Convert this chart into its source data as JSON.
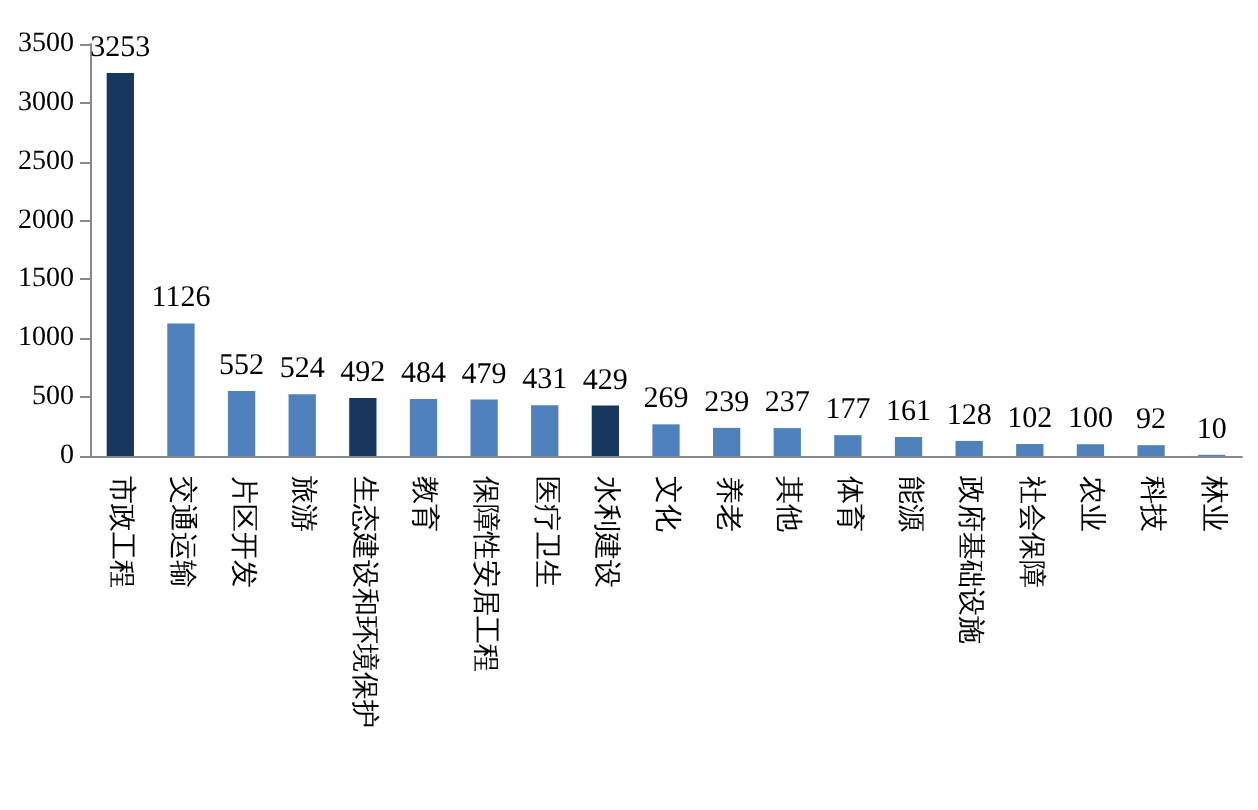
{
  "chart_data": {
    "type": "bar",
    "categories": [
      "市政工程",
      "交通运输",
      "片区开发",
      "旅游",
      "生态建设和环境保护",
      "教育",
      "保障性安居工程",
      "医疗卫生",
      "水利建设",
      "文化",
      "养老",
      "其他",
      "体育",
      "能源",
      "政府基础设施",
      "社会保障",
      "农业",
      "科技",
      "林业"
    ],
    "values": [
      3253,
      1126,
      552,
      524,
      492,
      484,
      479,
      431,
      429,
      269,
      239,
      237,
      177,
      161,
      128,
      102,
      100,
      92,
      10
    ],
    "colors": [
      "#17375e",
      "#4f81bd",
      "#4f81bd",
      "#4f81bd",
      "#17375e",
      "#4f81bd",
      "#4f81bd",
      "#4f81bd",
      "#17375e",
      "#4f81bd",
      "#4f81bd",
      "#4f81bd",
      "#4f81bd",
      "#4f81bd",
      "#4f81bd",
      "#4f81bd",
      "#4f81bd",
      "#4f81bd",
      "#4f81bd"
    ],
    "ylim": [
      0,
      3500
    ],
    "yticks": [
      0,
      500,
      1000,
      1500,
      2000,
      2500,
      3000,
      3500
    ],
    "data_labels": true
  }
}
